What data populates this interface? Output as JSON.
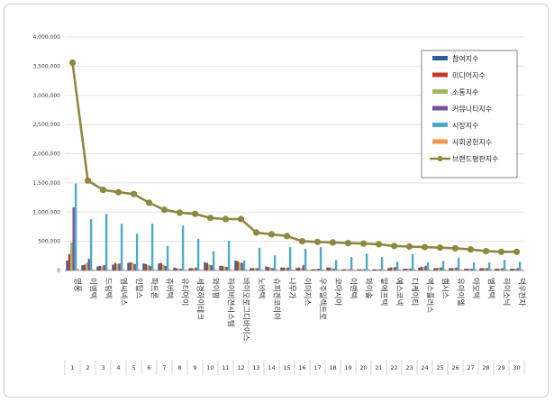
{
  "chart_data": {
    "type": "bar",
    "ylim": [
      0,
      4000000
    ],
    "y_ticks": [
      "0",
      "500,000",
      "1,000,000",
      "1,500,000",
      "2,000,000",
      "2,500,000",
      "3,000,000",
      "3,500,000",
      "4,000,000"
    ],
    "y_tick_values": [
      0,
      500000,
      1000000,
      1500000,
      2000000,
      2500000,
      3000000,
      3500000,
      4000000
    ],
    "grid": true,
    "legend_position": "top-right",
    "categories": [
      "영풍",
      "이엠텍",
      "드림텍",
      "엠씨넥스",
      "인탑스",
      "파트론",
      "쥬버텍",
      "유티아이",
      "세경하이테크",
      "와이팜",
      "하이비젼시스템",
      "바이오로그디바이스",
      "노바텍",
      "슈피겐코리아",
      "나무가",
      "이미지스",
      "우주일렉트로",
      "코아시아",
      "이랜텍",
      "와이솔",
      "알에프텍",
      "예스코넥",
      "디케이티",
      "엑스플러스",
      "캠시스",
      "유아이엘",
      "아모텍",
      "엠씨텍",
      "하이소닉",
      "덕우전자"
    ],
    "ranks": [
      "1",
      "2",
      "3",
      "4",
      "5",
      "6",
      "7",
      "8",
      "9",
      "10",
      "11",
      "12",
      "13",
      "14",
      "15",
      "16",
      "17",
      "18",
      "19",
      "20",
      "21",
      "22",
      "23",
      "24",
      "25",
      "26",
      "27",
      "28",
      "29",
      "30"
    ],
    "series": [
      {
        "name": "참여지수",
        "color": "#2e5d9f",
        "values": [
          170000,
          90000,
          70000,
          100000,
          130000,
          120000,
          120000,
          50000,
          40000,
          140000,
          80000,
          170000,
          40000,
          70000,
          50000,
          40000,
          20000,
          50000,
          20000,
          20000,
          20000,
          40000,
          30000,
          50000,
          40000,
          40000,
          30000,
          40000,
          30000,
          30000
        ]
      },
      {
        "name": "미디어지수",
        "color": "#c0392b",
        "values": [
          280000,
          100000,
          80000,
          130000,
          140000,
          110000,
          130000,
          40000,
          40000,
          130000,
          80000,
          160000,
          40000,
          60000,
          50000,
          50000,
          20000,
          50000,
          20000,
          20000,
          20000,
          50000,
          30000,
          60000,
          40000,
          40000,
          30000,
          40000,
          30000,
          30000
        ]
      },
      {
        "name": "소통지수",
        "color": "#9bbb59",
        "values": [
          480000,
          130000,
          70000,
          110000,
          130000,
          90000,
          100000,
          30000,
          40000,
          100000,
          70000,
          140000,
          40000,
          50000,
          40000,
          40000,
          30000,
          40000,
          20000,
          20000,
          20000,
          50000,
          30000,
          60000,
          50000,
          40000,
          30000,
          40000,
          30000,
          30000
        ]
      },
      {
        "name": "커뮤니티지수",
        "color": "#7b4fa0",
        "values": [
          1080000,
          200000,
          90000,
          120000,
          110000,
          80000,
          80000,
          30000,
          50000,
          90000,
          60000,
          130000,
          40000,
          40000,
          50000,
          90000,
          30000,
          30000,
          20000,
          20000,
          20000,
          60000,
          30000,
          80000,
          50000,
          50000,
          30000,
          40000,
          40000,
          40000
        ]
      },
      {
        "name": "시장지수",
        "color": "#4bacc6",
        "values": [
          1490000,
          880000,
          970000,
          800000,
          630000,
          800000,
          420000,
          770000,
          540000,
          330000,
          510000,
          170000,
          390000,
          260000,
          400000,
          370000,
          400000,
          180000,
          230000,
          290000,
          230000,
          150000,
          280000,
          140000,
          160000,
          220000,
          140000,
          140000,
          180000,
          150000
        ]
      },
      {
        "name": "사회공헌지수",
        "color": "#f79646",
        "values": [
          30000,
          20000,
          20000,
          20000,
          20000,
          20000,
          20000,
          20000,
          20000,
          20000,
          20000,
          20000,
          20000,
          20000,
          20000,
          20000,
          20000,
          20000,
          20000,
          20000,
          20000,
          20000,
          20000,
          20000,
          20000,
          20000,
          20000,
          20000,
          20000,
          20000
        ]
      }
    ],
    "line_series": {
      "name": "브랜드평판지수",
      "color": "#8c8a3c",
      "values": [
        3560000,
        1540000,
        1380000,
        1340000,
        1310000,
        1160000,
        1040000,
        990000,
        970000,
        900000,
        880000,
        880000,
        650000,
        620000,
        590000,
        500000,
        490000,
        480000,
        470000,
        460000,
        450000,
        420000,
        410000,
        400000,
        390000,
        380000,
        360000,
        330000,
        320000,
        320000
      ]
    }
  }
}
